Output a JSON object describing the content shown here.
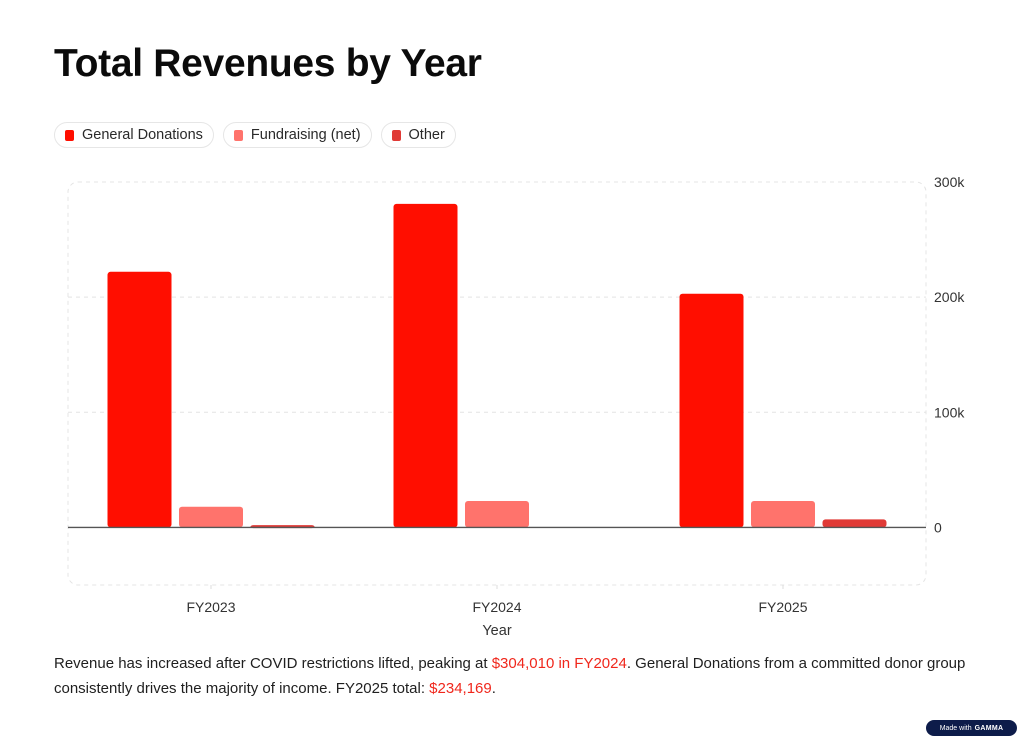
{
  "title": "Total Revenues by Year",
  "legend": [
    {
      "label": "General Donations",
      "color": "#ff0e00"
    },
    {
      "label": "Fundraising (net)",
      "color": "#ff736c"
    },
    {
      "label": "Other",
      "color": "#e03a36"
    }
  ],
  "description": {
    "part1": "Revenue has increased after COVID restrictions lifted, peaking at ",
    "highlight1": "$304,010 in FY2024",
    "part2": ".  General Donations from a committed donor group consistently drives the majority of income. FY2025 total: ",
    "highlight2": "$234,169",
    "part3": "."
  },
  "badge": {
    "prefix": "Made with",
    "brand": "GAMMA"
  },
  "chart_data": {
    "type": "bar",
    "title": "Total Revenues by Year",
    "xlabel": "Year",
    "ylabel": "",
    "categories": [
      "FY2023",
      "FY2024",
      "FY2025"
    ],
    "series": [
      {
        "name": "General Donations",
        "color": "#ff0e00",
        "values": [
          222000,
          281000,
          203000
        ]
      },
      {
        "name": "Fundraising (net)",
        "color": "#ff736c",
        "values": [
          18000,
          23000,
          23000
        ]
      },
      {
        "name": "Other",
        "color": "#e03a36",
        "values": [
          2000,
          0,
          7000
        ]
      }
    ],
    "ylim": [
      -50000,
      300000
    ],
    "yticks": [
      0,
      100000,
      200000,
      300000
    ],
    "ytick_labels": [
      "0",
      "100k",
      "200k",
      "300k"
    ],
    "y_axis_side": "right",
    "grid": true,
    "legend_position": "top-left"
  }
}
